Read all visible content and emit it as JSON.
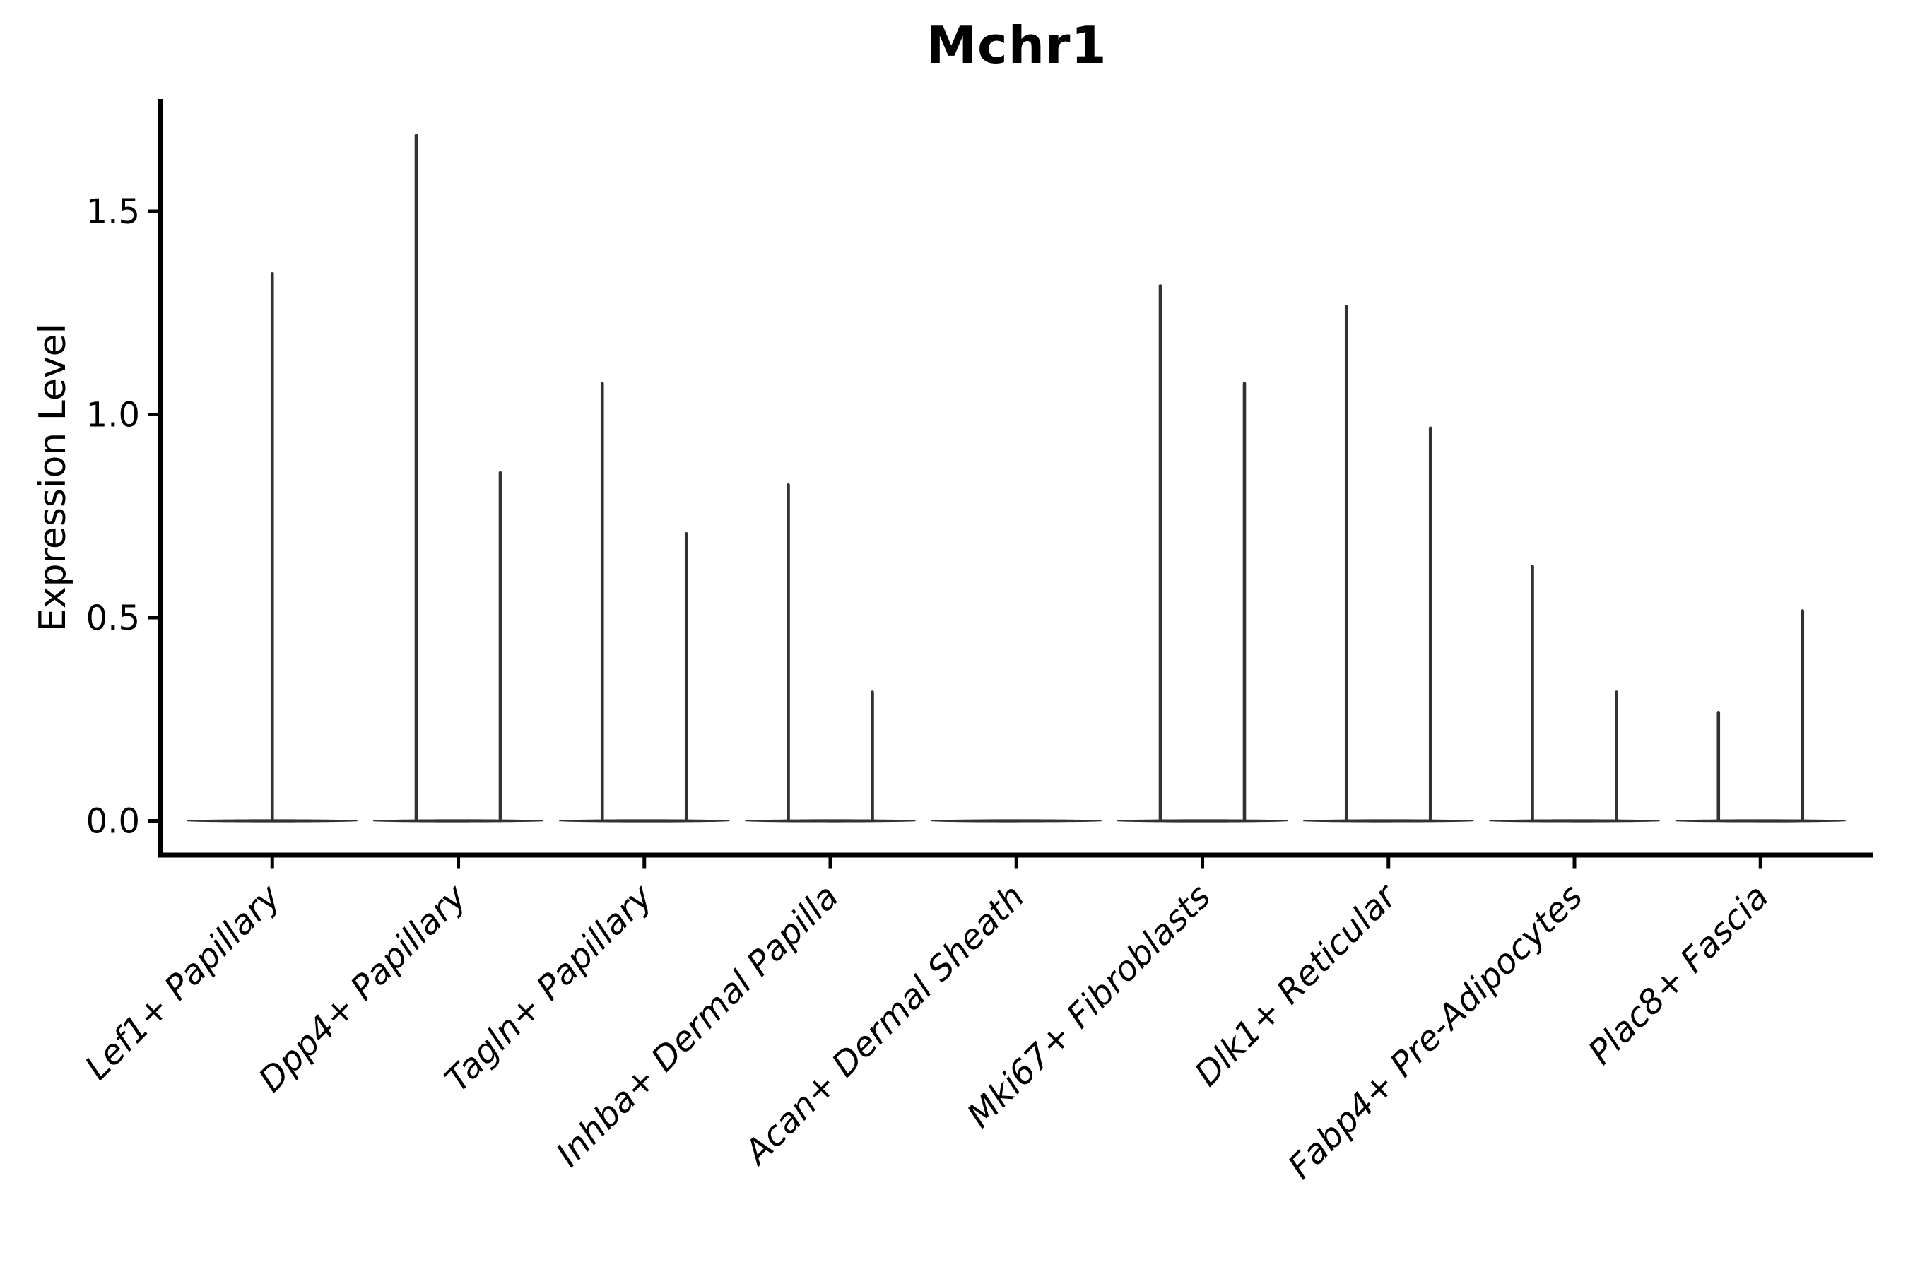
{
  "chart_data": {
    "type": "violin",
    "title": "Mchr1",
    "ylabel": "Expression Level",
    "xlabel": "",
    "yticks": [
      0.0,
      0.5,
      1.0,
      1.5
    ],
    "ytick_labels": [
      "0.0",
      "0.5",
      "1.0",
      "1.5"
    ],
    "ylim": [
      -0.08,
      1.78
    ],
    "grid": false,
    "legend": "none",
    "x_label_rotation_deg": 45,
    "x_label_style": "italic",
    "categories": [
      "Lef1+ Papillary",
      "Dpp4+ Papillary",
      "Tagln+ Papillary",
      "Inhba+ Dermal Papilla",
      "Acan+ Dermal Sheath",
      "Mki67+ Fibroblasts",
      "Dlk1+ Reticular",
      "Fabp4+ Pre-Adipocytes",
      "Plac8+ Fascia"
    ],
    "groups": [
      {
        "category": "Lef1+ Papillary",
        "violins": [
          {
            "offset": 0.0,
            "max": 1.35
          }
        ]
      },
      {
        "category": "Dpp4+ Papillary",
        "violins": [
          {
            "offset": -0.226,
            "max": 1.69
          },
          {
            "offset": 0.226,
            "max": 0.86
          }
        ]
      },
      {
        "category": "Tagln+ Papillary",
        "violins": [
          {
            "offset": -0.226,
            "max": 1.08
          },
          {
            "offset": 0.226,
            "max": 0.71
          }
        ]
      },
      {
        "category": "Inhba+ Dermal Papilla",
        "violins": [
          {
            "offset": -0.226,
            "max": 0.83
          },
          {
            "offset": 0.226,
            "max": 0.32
          }
        ]
      },
      {
        "category": "Acan+ Dermal Sheath",
        "violins": []
      },
      {
        "category": "Mki67+ Fibroblasts",
        "violins": [
          {
            "offset": -0.226,
            "max": 1.32
          },
          {
            "offset": 0.226,
            "max": 1.08
          }
        ]
      },
      {
        "category": "Dlk1+ Reticular",
        "violins": [
          {
            "offset": -0.226,
            "max": 1.27
          },
          {
            "offset": 0.226,
            "max": 0.97
          }
        ]
      },
      {
        "category": "Fabp4+ Pre-Adipocytes",
        "violins": [
          {
            "offset": -0.226,
            "max": 0.63
          },
          {
            "offset": 0.226,
            "max": 0.32
          }
        ]
      },
      {
        "category": "Plac8+ Fascia",
        "violins": [
          {
            "offset": -0.226,
            "max": 0.27
          },
          {
            "offset": 0.226,
            "max": 0.52
          }
        ]
      }
    ]
  },
  "colors": {
    "violin_line": "#323232",
    "axis": "#000000",
    "text": "#000000",
    "background": "#ffffff"
  }
}
